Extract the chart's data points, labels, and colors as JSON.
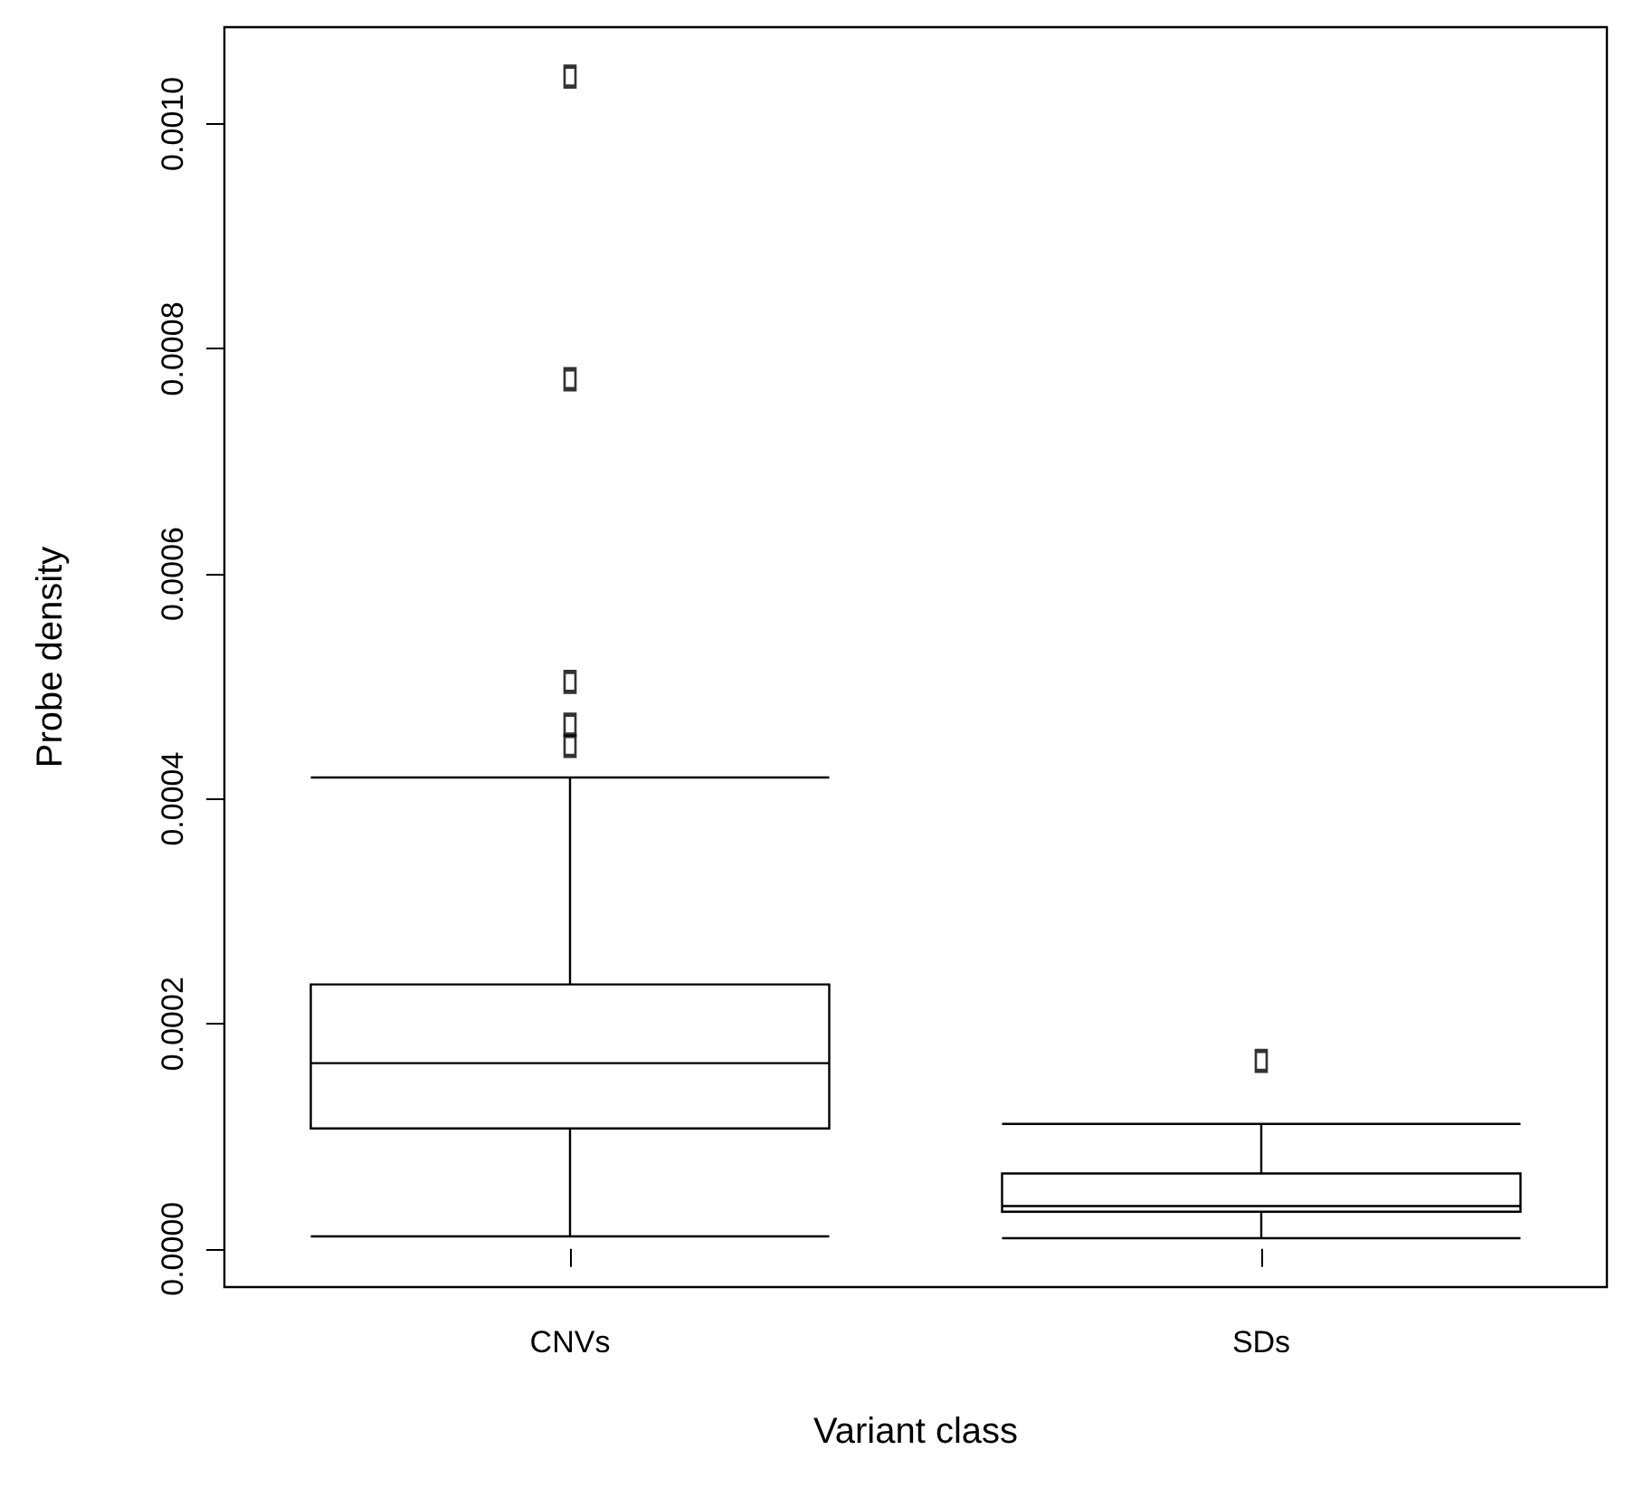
{
  "chart_data": {
    "type": "box",
    "xlabel": "Variant class",
    "ylabel": "Probe density",
    "categories": [
      "CNVs",
      "SDs"
    ],
    "boxes": [
      {
        "low": 1.1e-05,
        "q1": 0.000107,
        "median": 0.000165,
        "q3": 0.000235,
        "high": 0.000419,
        "outliers": [
          0.000447,
          0.000466,
          0.000504,
          0.000773,
          0.001042
        ]
      },
      {
        "low": 9.4e-06,
        "q1": 3.3e-05,
        "median": 3.8e-05,
        "q3": 6.7e-05,
        "high": 0.000111,
        "outliers": [
          0.000167
        ]
      }
    ],
    "color": "#000000",
    "ylim": [
      -3.4e-05,
      0.001086
    ],
    "yticks": [
      {
        "value": 0,
        "label": "0.0000"
      },
      {
        "value": 0.0002,
        "label": "0.0002"
      },
      {
        "value": 0.0004,
        "label": "0.0004"
      },
      {
        "value": 0.0006,
        "label": "0.0006"
      },
      {
        "value": 0.0008,
        "label": "0.0008"
      },
      {
        "value": 0.001,
        "label": "0.0010"
      }
    ]
  }
}
